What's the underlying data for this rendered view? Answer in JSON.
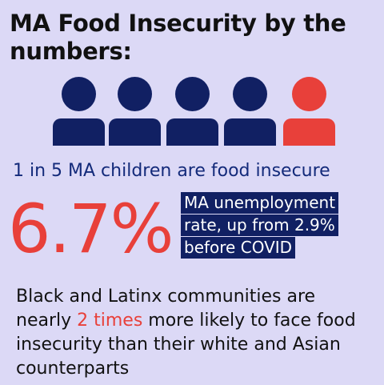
{
  "header": {
    "title": "MA Food Insecurity by the numbers:"
  },
  "people": {
    "count": 5,
    "highlighted": 1,
    "colors": {
      "default": "#112063",
      "highlight": "#e8403a"
    }
  },
  "stats": {
    "children_line": "1 in 5 MA children are food insecure",
    "unemployment_value": "6.7%",
    "unemployment_lines": [
      "MA unemployment",
      "rate, up from 2.9%",
      "before COVID"
    ]
  },
  "disparity": {
    "before": "Black and Latinx communities are nearly ",
    "highlight": "2 times",
    "after": " more likely to face food insecurity than their white and Asian counterparts"
  },
  "colors": {
    "background": "#dcd9f6",
    "navy": "#112063",
    "red": "#e8403a",
    "text": "#111111"
  }
}
